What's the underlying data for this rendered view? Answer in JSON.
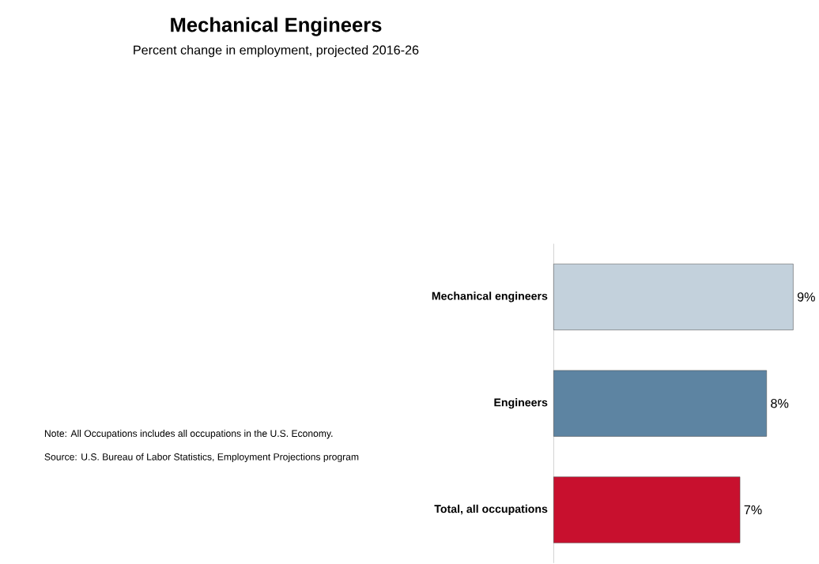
{
  "chart_data": {
    "type": "bar",
    "orientation": "horizontal",
    "title": "Mechanical Engineers",
    "subtitle": "Percent change in employment, projected 2016-26",
    "categories": [
      "Mechanical engineers",
      "Engineers",
      "Total, all occupations"
    ],
    "values": [
      9,
      8,
      7
    ],
    "value_labels": [
      "9%",
      "8%",
      "7%"
    ],
    "colors": [
      "#c3d1dc",
      "#5d84a2",
      "#c8102e"
    ],
    "annotations": [
      "Note: All Occupations includes all occupations in the U.S. Economy.",
      "Source: U.S. Bureau of Labor Statistics, Employment Projections program"
    ]
  }
}
